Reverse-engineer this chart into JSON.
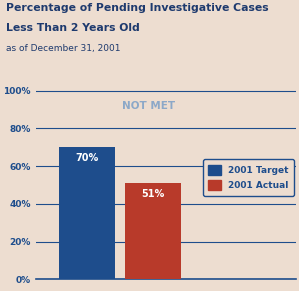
{
  "title_line1": "Percentage of Pending Investigative Cases",
  "title_line2": "Less Than 2 Years Old",
  "subtitle": "as of December 31, 2001",
  "not_met_label": "NOT MET",
  "values": [
    70,
    51
  ],
  "bar_colors": [
    "#1e4d8c",
    "#b83a2a"
  ],
  "bar_label_colors": [
    "white",
    "white"
  ],
  "legend_labels": [
    "2001 Target",
    "2001 Actual"
  ],
  "legend_colors": [
    "#1e4d8c",
    "#b83a2a"
  ],
  "yticks": [
    0,
    20,
    40,
    60,
    80,
    100
  ],
  "ytick_labels": [
    "0%",
    "20%",
    "40%",
    "60%",
    "80%",
    "100%"
  ],
  "ylim": [
    0,
    108
  ],
  "background_color": "#edddd0",
  "grid_color": "#1e4d8c",
  "title_color": "#1e3a6e",
  "subtitle_color": "#1e3a6e",
  "not_met_color": "#8ca8c8",
  "tick_label_color": "#1e4d8c",
  "legend_text_color": "#1e4d8c"
}
